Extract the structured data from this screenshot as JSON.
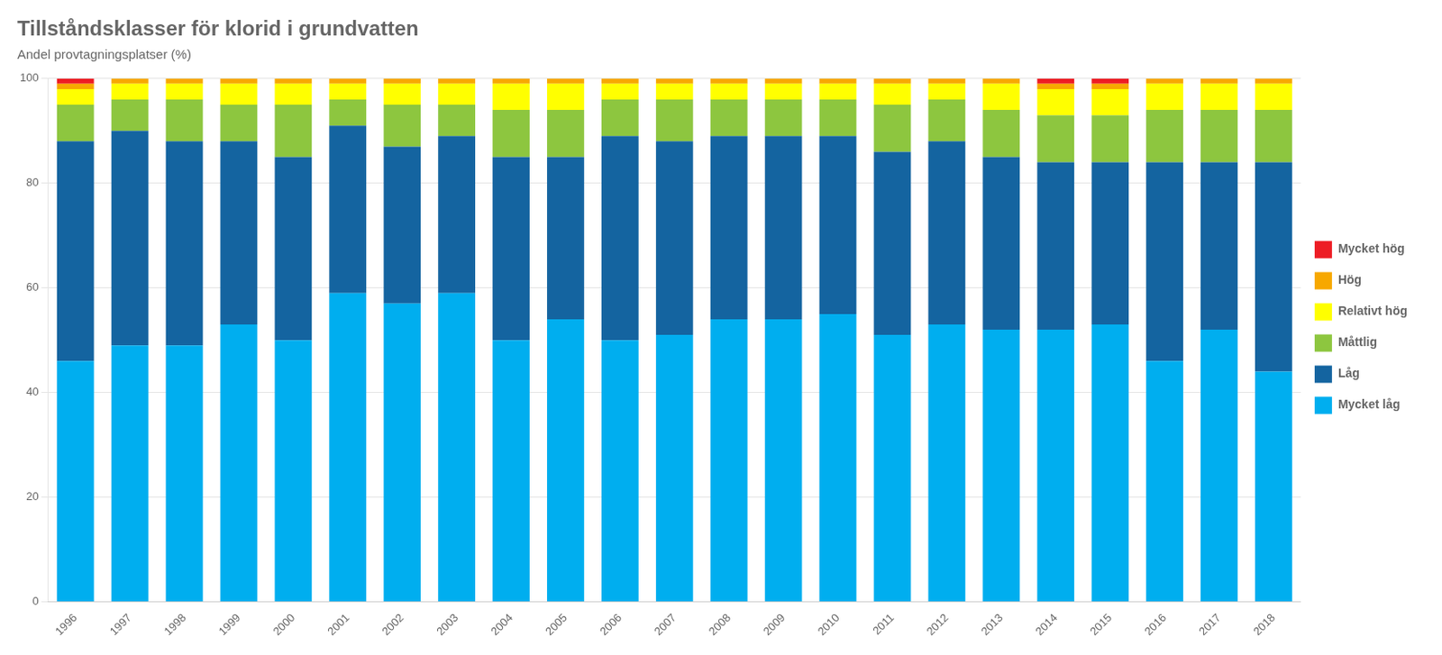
{
  "chart_data": {
    "type": "bar",
    "title": "Tillståndsklasser för klorid i grundvatten",
    "subtitle": "Andel provtagningsplatser (%)",
    "stacked": true,
    "grid": true,
    "legend": "right",
    "categories": [
      "1996",
      "1997",
      "1998",
      "1999",
      "2000",
      "2001",
      "2002",
      "2003",
      "2004",
      "2005",
      "2006",
      "2007",
      "2008",
      "2009",
      "2010",
      "2011",
      "2012",
      "2013",
      "2014",
      "2015",
      "2016",
      "2017",
      "2018"
    ],
    "series": [
      {
        "name": "Mycket låg",
        "color": "#00AEEF",
        "values": [
          46,
          49,
          49,
          53,
          50,
          59,
          57,
          59,
          50,
          54,
          50,
          51,
          54,
          54,
          55,
          51,
          53,
          52,
          52,
          53,
          46,
          52,
          44
        ]
      },
      {
        "name": "Låg",
        "color": "#1464A0",
        "values": [
          42,
          41,
          39,
          35,
          35,
          32,
          30,
          30,
          35,
          31,
          39,
          37,
          35,
          35,
          34,
          35,
          35,
          33,
          32,
          31,
          38,
          32,
          40
        ]
      },
      {
        "name": "Måttlig",
        "color": "#8DC63F",
        "values": [
          7,
          6,
          8,
          7,
          10,
          5,
          8,
          6,
          9,
          9,
          7,
          8,
          7,
          7,
          7,
          9,
          8,
          9,
          9,
          9,
          10,
          10,
          10
        ]
      },
      {
        "name": "Relativt hög",
        "color": "#FFFF00",
        "values": [
          3,
          3,
          3,
          4,
          4,
          3,
          4,
          4,
          5,
          5,
          3,
          3,
          3,
          3,
          3,
          4,
          3,
          5,
          5,
          5,
          5,
          5,
          5
        ]
      },
      {
        "name": "Hög",
        "color": "#F7A800",
        "values": [
          1,
          1,
          1,
          1,
          1,
          1,
          1,
          1,
          1,
          1,
          1,
          1,
          1,
          1,
          1,
          1,
          1,
          1,
          1,
          1,
          1,
          1,
          1
        ]
      },
      {
        "name": "Mycket hög",
        "color": "#ED1C24",
        "values": [
          1,
          0,
          0,
          0,
          0,
          0,
          0,
          0,
          0,
          0,
          0,
          0,
          0,
          0,
          0,
          0,
          0,
          0,
          1,
          1,
          0,
          0,
          0
        ]
      }
    ],
    "ylim": [
      0,
      100
    ],
    "yticks": [
      0,
      20,
      40,
      60,
      80,
      100
    ]
  }
}
